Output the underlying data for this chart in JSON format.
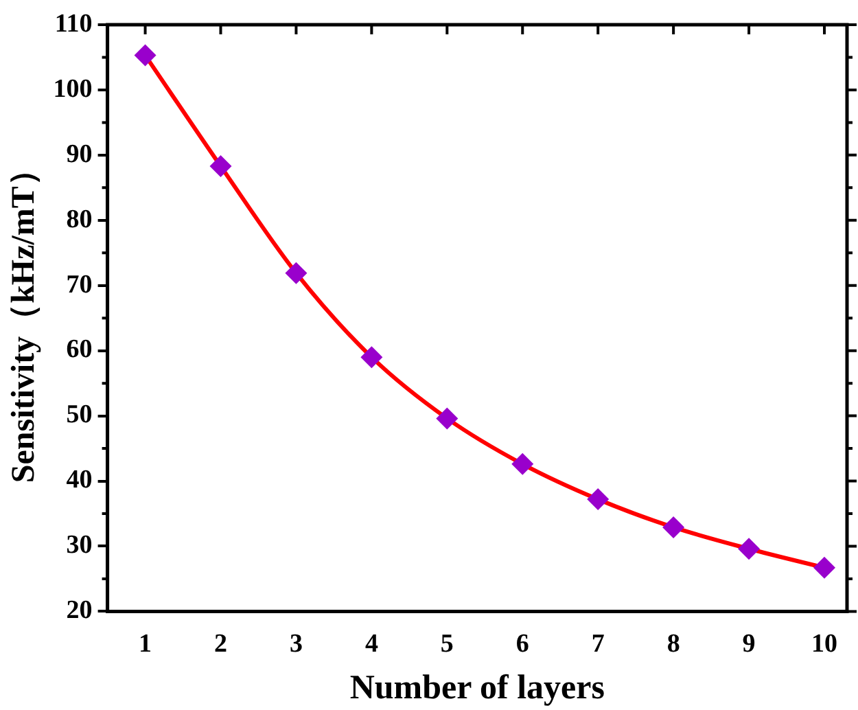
{
  "chart_data": {
    "type": "line",
    "xlabel": "Number of layers",
    "ylabel": "Sensitivity（kHz/mT）",
    "x": [
      1,
      2,
      3,
      4,
      5,
      6,
      7,
      8,
      9,
      10
    ],
    "series": [
      {
        "color": "#ff0000",
        "colors": [
          "#9900cc",
          "#9900cc",
          "#9900cc",
          "#9900cc",
          "#9900cc",
          "#9900cc",
          "#9900cc",
          "#9900cc",
          "#9900cc",
          "#9900cc"
        ],
        "values": [
          105.3,
          88.3,
          71.9,
          59.0,
          49.6,
          42.6,
          37.2,
          32.9,
          29.6,
          26.7
        ]
      }
    ],
    "marker": "diamond",
    "line_style": "solid",
    "xlim": [
      0.5,
      10.3
    ],
    "xticks": [
      1,
      2,
      3,
      4,
      5,
      6,
      7,
      8,
      9,
      10
    ],
    "ylim": [
      20,
      110
    ],
    "yticks": [
      20,
      30,
      40,
      50,
      60,
      70,
      80,
      90,
      100,
      110
    ],
    "grid": false,
    "legend": false
  }
}
